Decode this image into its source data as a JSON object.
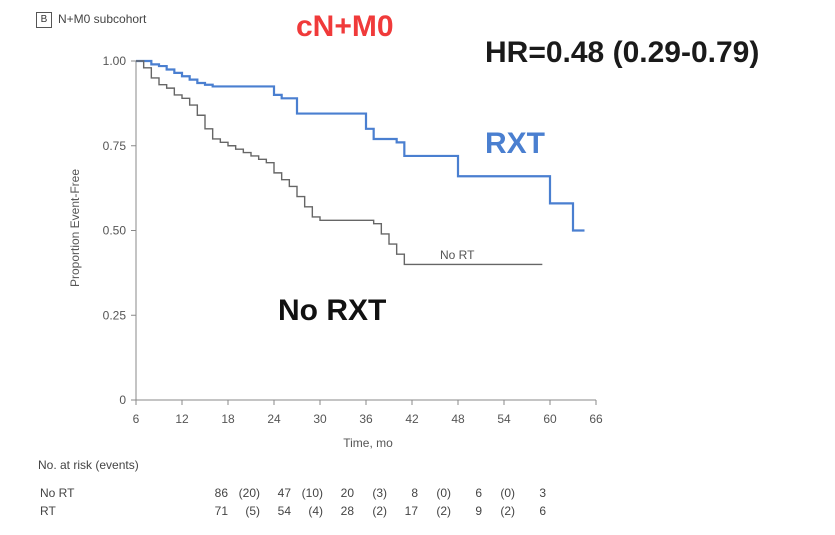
{
  "panel": {
    "badge": "B",
    "subtitle": "N+M0 subcohort"
  },
  "title": "cN+M0",
  "hazard_ratio_text": "HR=0.48 (0.29-0.79)",
  "colors": {
    "rt": "#4a7fd0",
    "no_rt": "#666666",
    "title": "#f03a3a"
  },
  "chart_data": {
    "type": "line",
    "step": true,
    "xlabel": "Time, mo",
    "ylabel": "Proportion Event-Free",
    "xlim": [
      6,
      66
    ],
    "ylim": [
      0,
      1.0
    ],
    "xticks": [
      6,
      12,
      18,
      24,
      30,
      36,
      42,
      48,
      54,
      60,
      66
    ],
    "yticks": [
      "0",
      "0.25",
      "0.50",
      "0.75",
      "1.00"
    ],
    "yticks_values": [
      0,
      0.25,
      0.5,
      0.75,
      1.0
    ],
    "series": [
      {
        "key": "rt",
        "name": "RXT",
        "color": "#4a7fd0",
        "x": [
          6,
          7.5,
          8,
          9,
          10,
          11,
          12,
          13,
          14,
          15,
          16,
          24,
          25,
          27,
          36,
          37,
          40,
          41,
          47,
          48,
          59,
          60,
          62,
          63,
          64.5
        ],
        "y": [
          1.0,
          1.0,
          0.99,
          0.985,
          0.975,
          0.965,
          0.955,
          0.945,
          0.935,
          0.93,
          0.925,
          0.9,
          0.89,
          0.845,
          0.8,
          0.77,
          0.76,
          0.72,
          0.72,
          0.66,
          0.66,
          0.58,
          0.58,
          0.5,
          0.5
        ]
      },
      {
        "key": "no_rt",
        "name": "No RT",
        "color": "#666666",
        "x": [
          6,
          7,
          8,
          9,
          10,
          11,
          12,
          13,
          14,
          15,
          16,
          17,
          18,
          19,
          20,
          21,
          22,
          23,
          24,
          25,
          26,
          27,
          28,
          29,
          30,
          36,
          37,
          38,
          39,
          40,
          41,
          59
        ],
        "y": [
          1.0,
          0.98,
          0.95,
          0.93,
          0.92,
          0.9,
          0.89,
          0.87,
          0.84,
          0.8,
          0.77,
          0.76,
          0.75,
          0.74,
          0.73,
          0.72,
          0.71,
          0.7,
          0.67,
          0.65,
          0.63,
          0.6,
          0.57,
          0.54,
          0.53,
          0.53,
          0.52,
          0.49,
          0.46,
          0.43,
          0.4,
          0.4
        ]
      }
    ],
    "annotations": [
      {
        "text": "RXT",
        "series": "rt"
      },
      {
        "text": "No RT",
        "series": "no_rt"
      },
      {
        "text": "No RXT",
        "series": "no_rt"
      }
    ]
  },
  "risk_table": {
    "header": "No. at risk (events)",
    "rows": [
      {
        "label": "No RT",
        "cells": [
          "86",
          "(20)",
          "47",
          "(10)",
          "20",
          "(3)",
          "8",
          "(0)",
          "6",
          "(0)",
          "3"
        ]
      },
      {
        "label": "RT",
        "cells": [
          "71",
          "(5)",
          "54",
          "(4)",
          "28",
          "(2)",
          "17",
          "(2)",
          "9",
          "(2)",
          "6"
        ]
      }
    ]
  }
}
